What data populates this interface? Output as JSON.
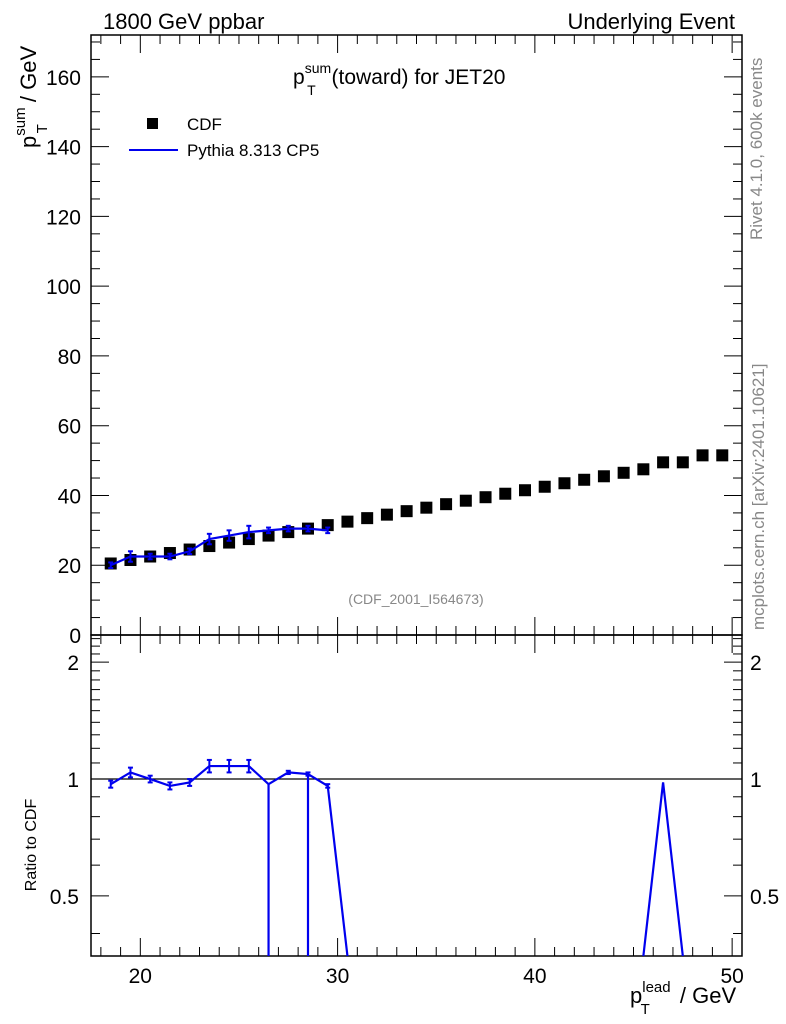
{
  "header": {
    "left": "1800 GeV ppbar",
    "right": "Underlying Event"
  },
  "side_label": {
    "rivet": "Rivet 4.1.0,  600k events",
    "mcplots": "mcplots.cern.ch [arXiv:2401.10621]"
  },
  "colors": {
    "cdf": "#000000",
    "pythia": "#0000ee",
    "grey": "#888888"
  },
  "chart_data": [
    {
      "type": "scatter",
      "title": {
        "p": "p",
        "sup": "sum",
        "sub": "T",
        "rest": " (toward) for JET20"
      },
      "ylabel": {
        "p": "p",
        "sup": "sum",
        "sub": "T",
        "rest": " / GeV"
      },
      "watermark": "(CDF_2001_I564673)",
      "xlim": [
        17.5,
        50.5
      ],
      "ylim": [
        0,
        172
      ],
      "yticks": [
        0,
        20,
        40,
        60,
        80,
        100,
        120,
        140,
        160
      ],
      "legend_position": "top-left",
      "series": [
        {
          "name": "CDF",
          "style": "markers",
          "x": [
            18.5,
            19.5,
            20.5,
            21.5,
            22.5,
            23.5,
            24.5,
            25.5,
            26.5,
            27.5,
            28.5,
            29.5,
            30.5,
            31.5,
            32.5,
            33.5,
            34.5,
            35.5,
            36.5,
            37.5,
            38.5,
            39.5,
            40.5,
            41.5,
            42.5,
            43.5,
            44.5,
            45.5,
            46.5,
            47.5,
            48.5,
            49.5
          ],
          "y": [
            20.5,
            21.5,
            22.5,
            23.5,
            24.5,
            25.5,
            26.5,
            27.5,
            28.5,
            29.5,
            30.5,
            31.5,
            32.5,
            33.5,
            34.5,
            35.5,
            36.5,
            37.5,
            38.5,
            39.5,
            40.5,
            41.5,
            42.5,
            43.5,
            44.5,
            45.5,
            46.5,
            47.5,
            49.5,
            49.5,
            51.5,
            51.5
          ]
        },
        {
          "name": "Pythia 8.313 CP5",
          "style": "line",
          "x": [
            18.5,
            19.5,
            20.5,
            21.5,
            22.5,
            23.5,
            24.5,
            25.5,
            26.5,
            27.5,
            28.5,
            29.5
          ],
          "y": [
            20.0,
            22.5,
            22.5,
            22.5,
            24.0,
            27.5,
            28.5,
            29.5,
            30.0,
            30.5,
            30.5,
            30.0
          ],
          "err": [
            0.8,
            1.5,
            0.8,
            0.8,
            0.8,
            1.5,
            1.5,
            1.8,
            0.8,
            0.8,
            0.8,
            0.8
          ]
        }
      ]
    },
    {
      "type": "line",
      "ylabel": "Ratio to CDF",
      "xlabel": {
        "p": "p",
        "sup": "lead",
        "sub": "T",
        "rest": " / GeV"
      },
      "xlim": [
        17.5,
        50.5
      ],
      "ylim": [
        0.35,
        2.35
      ],
      "yscale": "log",
      "xticks": [
        20,
        30,
        40,
        50
      ],
      "yticks": [
        0.5,
        1,
        2
      ],
      "reference": 1,
      "series": [
        {
          "name": "Pythia 8.313 CP5",
          "x": [
            18.5,
            19.5,
            20.5,
            21.5,
            22.5,
            23.5,
            24.5,
            25.5,
            26.5,
            27.5,
            28.5,
            29.5,
            30.5,
            45.5,
            46.5,
            47.5
          ],
          "y": [
            0.97,
            1.04,
            1.0,
            0.96,
            0.98,
            1.08,
            1.08,
            1.08,
            0.97,
            1.04,
            1.03,
            0.96,
            0.0,
            0.0,
            0.98,
            0.0
          ],
          "err": [
            0.02,
            0.03,
            0.02,
            0.02,
            0.02,
            0.04,
            0.04,
            0.04,
            0.0,
            0.01,
            0.01,
            0.01,
            0,
            0,
            0,
            0
          ]
        }
      ]
    }
  ]
}
